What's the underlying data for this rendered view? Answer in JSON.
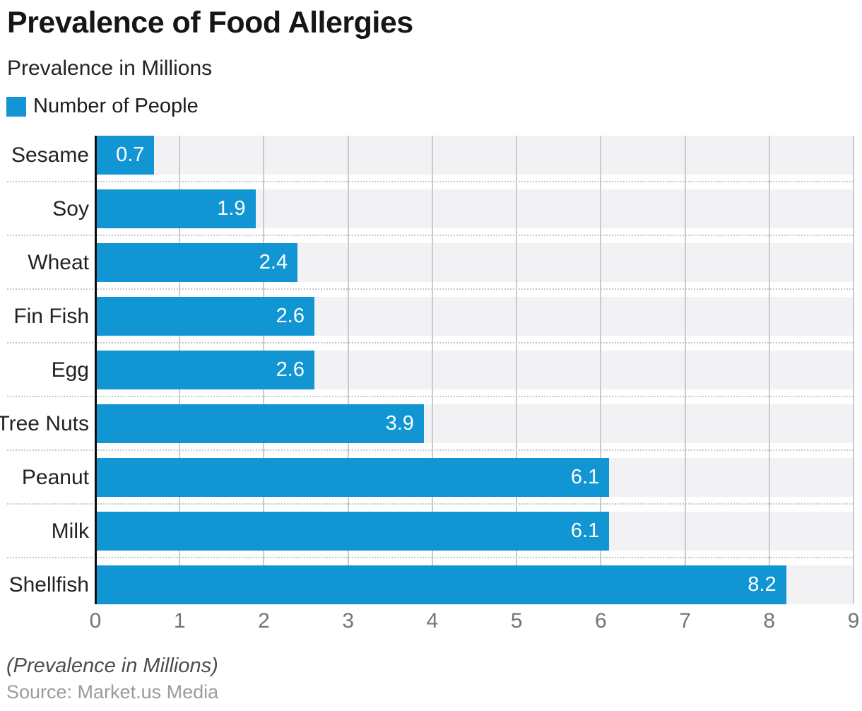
{
  "header": {
    "title": "Prevalence of Food Allergies",
    "subtitle": "Prevalence in Millions"
  },
  "legend": {
    "label": "Number of People",
    "swatch_color": "#1295d3"
  },
  "chart_data": {
    "type": "bar",
    "orientation": "horizontal",
    "title": "Prevalence of Food Allergies",
    "subtitle": "Prevalence in Millions",
    "series": [
      {
        "name": "Number of People",
        "values": [
          0.7,
          1.9,
          2.4,
          2.6,
          2.6,
          3.9,
          6.1,
          6.1,
          8.2
        ]
      }
    ],
    "categories": [
      "Sesame",
      "Soy",
      "Wheat",
      "Fin Fish",
      "Egg",
      "Tree Nuts",
      "Peanut",
      "Milk",
      "Shellfish"
    ],
    "value_labels": [
      "0.7",
      "1.9",
      "2.4",
      "2.6",
      "2.6",
      "3.9",
      "6.1",
      "6.1",
      "8.2"
    ],
    "xlim": [
      0,
      9
    ],
    "x_ticks": [
      "0",
      "1",
      "2",
      "3",
      "4",
      "5",
      "6",
      "7",
      "8",
      "9"
    ],
    "xlabel": "",
    "ylabel": "",
    "legend_position": "top-left",
    "grid": "vertical solid gridlines, dotted horizontal row separators, full-width light tracks behind bars",
    "bar_color": "#1295d3",
    "track_color": "#f2f1f4",
    "gridline_color": "#cbcbcd",
    "axis_color": "#0c0c0c",
    "value_label_color": "#ffffff",
    "tick_label_color": "#757575"
  },
  "footer": {
    "note": "(Prevalence in Millions)",
    "source": "Source: Market.us Media"
  }
}
